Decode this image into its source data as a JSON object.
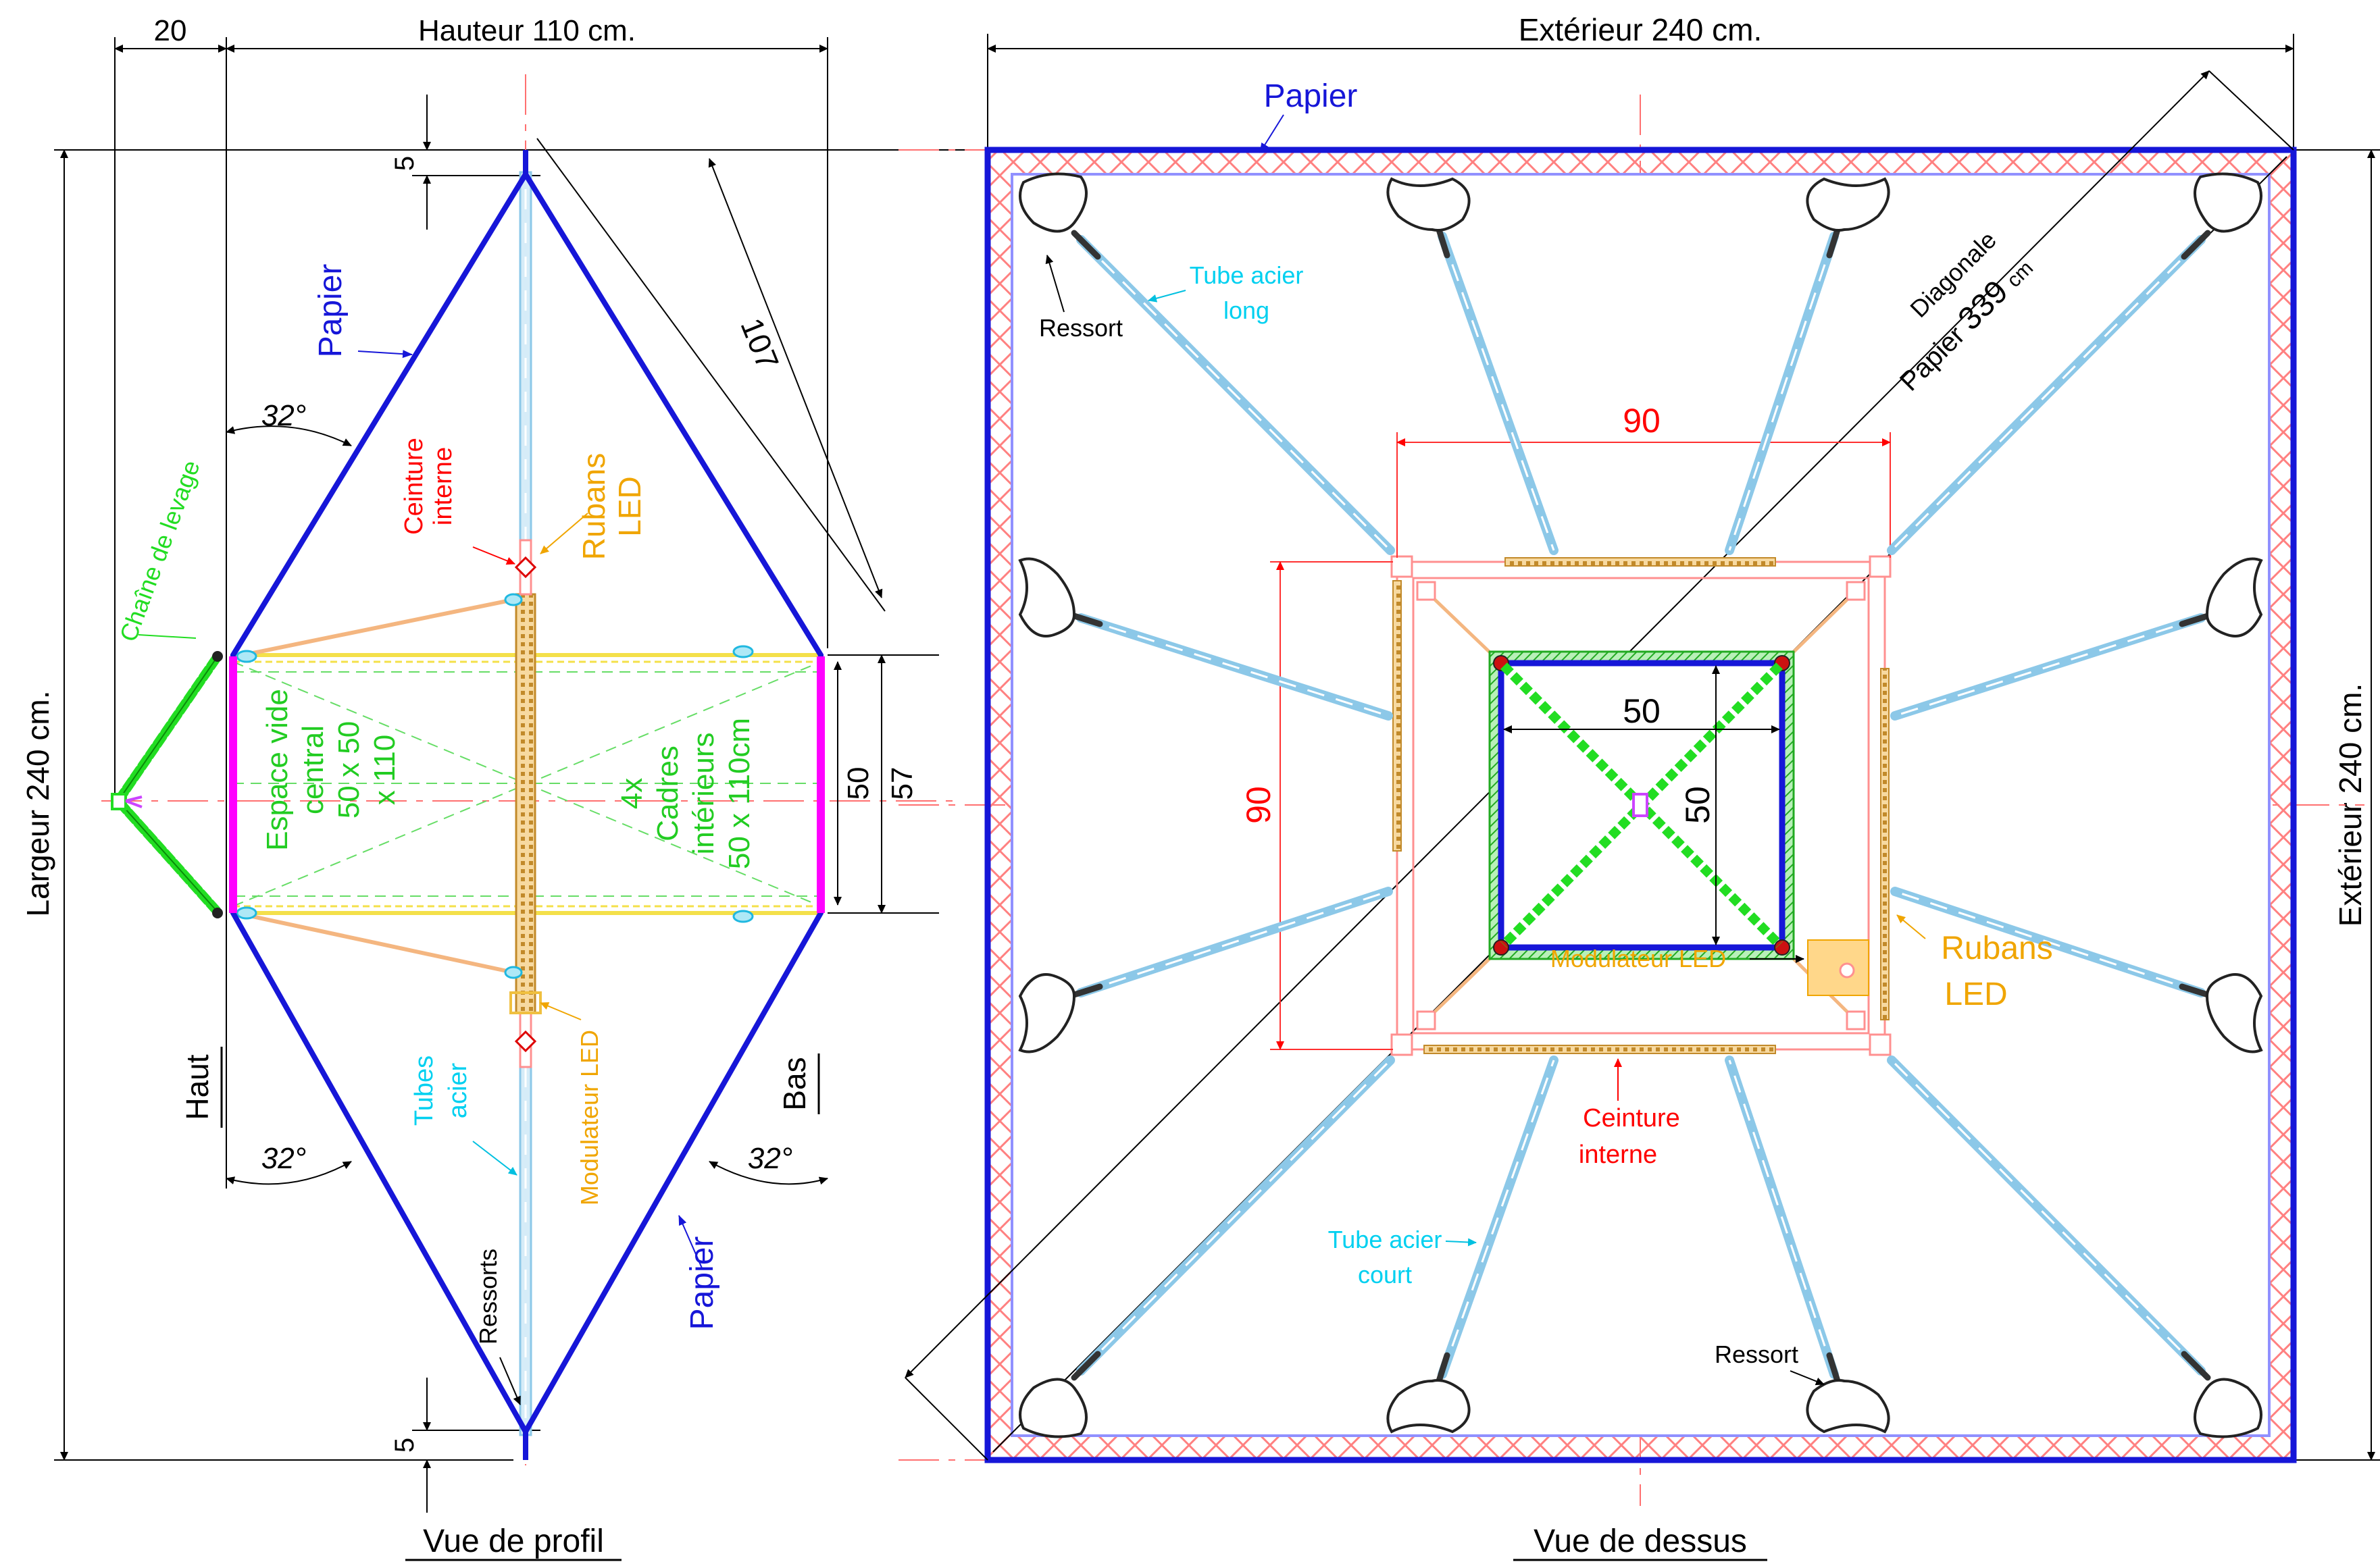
{
  "colors": {
    "frame": "#1616d8",
    "dim": "#000000",
    "center": "#ff7070",
    "steel": "#8cc8e8",
    "chain": "#22dd22",
    "led": "#f0a500",
    "belt": "#ff0000",
    "label_cyan": "#00d0f0",
    "magenta": "#ff00ff",
    "black": "#000000"
  },
  "side_view": {
    "caption": "Vue de profil",
    "dim_20": "20",
    "dim_height": "Hauteur 110 cm.",
    "dim_width": "Largeur 240 cm.",
    "dim_5_top": "5",
    "dim_5_bottom": "5",
    "dim_107": "107",
    "dim_50": "50",
    "dim_57": "57",
    "angle_top": "32°",
    "angle_bottom_left": "32°",
    "angle_bottom_right": "32°",
    "label_papier_top": "Papier",
    "label_papier_bottom": "Papier",
    "label_chaine": "Chaîne de levage",
    "label_ceinture_1": "Ceinture",
    "label_ceinture_2": "interne",
    "label_rubans_1": "Rubans",
    "label_rubans_2": "LED",
    "label_espace_1": "Espace vide",
    "label_espace_2": "central",
    "label_espace_3": "50 x 50",
    "label_espace_4": "x 110",
    "label_cadres_1": "4x",
    "label_cadres_2": "Cadres",
    "label_cadres_3": "intérieurs",
    "label_cadres_4": "50 x 110cm",
    "label_modulateur": "Modulateur LED",
    "label_tubes_1": "Tubes",
    "label_tubes_2": "acier",
    "label_ressorts": "Ressorts",
    "label_haut": "Haut",
    "label_bas": "Bas"
  },
  "top_view": {
    "caption": "Vue de dessus",
    "dim_exterior_top": "Extérieur 240 cm.",
    "dim_exterior_right": "Extérieur 240 cm.",
    "label_papier": "Papier",
    "label_diagonale_1": "Diagonale",
    "label_diagonale_2a": "Papier",
    "label_diagonale_2b": "339",
    "label_diagonale_2c": "cm",
    "dim_90_h": "90",
    "dim_90_v": "90",
    "dim_50_h": "50",
    "dim_50_v": "50",
    "label_ressort_top": "Ressort",
    "label_ressort_bottom": "Ressort",
    "label_tube_long_1": "Tube acier",
    "label_tube_long_2": "long",
    "label_tube_court_1": "Tube acier",
    "label_tube_court_2": "court",
    "label_modulateur": "Modulateur LED",
    "label_rubans_1": "Rubans",
    "label_rubans_2": "LED",
    "label_ceinture_1": "Ceinture",
    "label_ceinture_2": "interne"
  }
}
